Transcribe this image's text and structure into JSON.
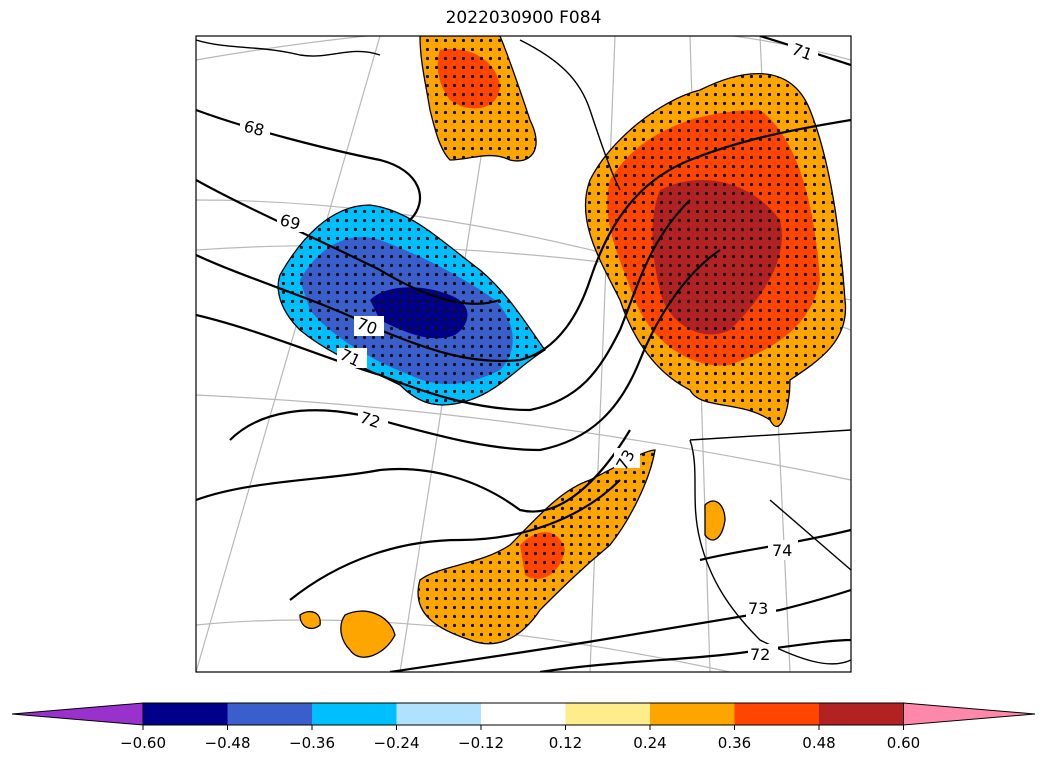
{
  "title": "2022030900 F084",
  "contour_labels": [
    "68",
    "69",
    "70",
    "71",
    "71",
    "72",
    "72",
    "73",
    "73",
    "74"
  ],
  "colorbar": {
    "ticks": [
      "−0.60",
      "−0.48",
      "−0.36",
      "−0.24",
      "−0.12",
      "0.12",
      "0.24",
      "0.36",
      "0.48",
      "0.60"
    ],
    "colors": [
      "#9932CC",
      "#00008B",
      "#3A5FCD",
      "#00BFFF",
      "#B0E2FF",
      "#FFFFFF",
      "#FFEC8B",
      "#FFA500",
      "#FF4500",
      "#B22222",
      "#FF88AA"
    ]
  },
  "colors": {
    "gridline": "#b8b8b8",
    "contour": "#000000"
  }
}
